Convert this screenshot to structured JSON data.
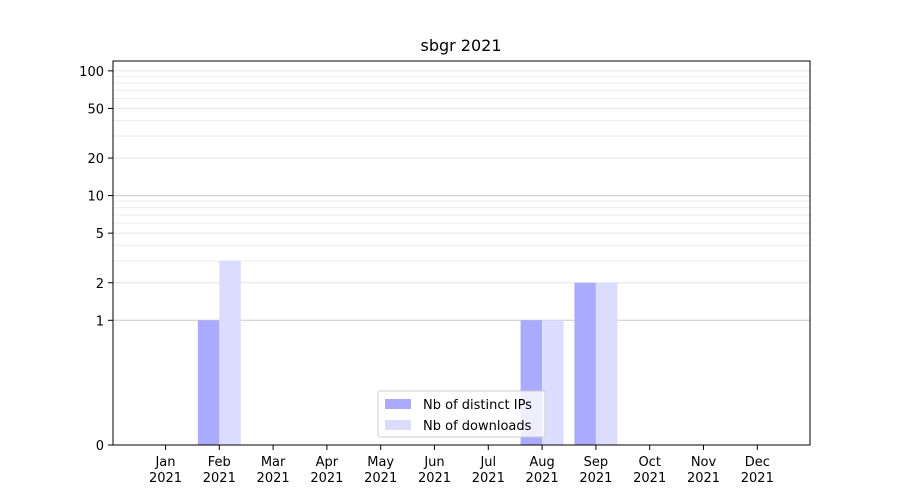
{
  "chart_data": {
    "type": "bar",
    "title": "sbgr 2021",
    "categories": [
      "Jan\n2021",
      "Feb\n2021",
      "Mar\n2021",
      "Apr\n2021",
      "May\n2021",
      "Jun\n2021",
      "Jul\n2021",
      "Aug\n2021",
      "Sep\n2021",
      "Oct\n2021",
      "Nov\n2021",
      "Dec\n2021"
    ],
    "series": [
      {
        "name": "Nb of distinct IPs",
        "values": [
          0,
          1,
          0,
          0,
          0,
          0,
          0,
          1,
          2,
          0,
          0,
          0
        ],
        "color": "#aaaaff"
      },
      {
        "name": "Nb of downloads",
        "values": [
          0,
          3,
          0,
          0,
          0,
          0,
          0,
          1,
          2,
          0,
          0,
          0
        ],
        "color": "#dcdcff"
      }
    ],
    "yscale": "symlog",
    "ylim": [
      0,
      120
    ],
    "yticks": [
      0,
      1,
      2,
      5,
      10,
      20,
      50,
      100
    ],
    "grid": true,
    "legend_position": "lower center"
  }
}
